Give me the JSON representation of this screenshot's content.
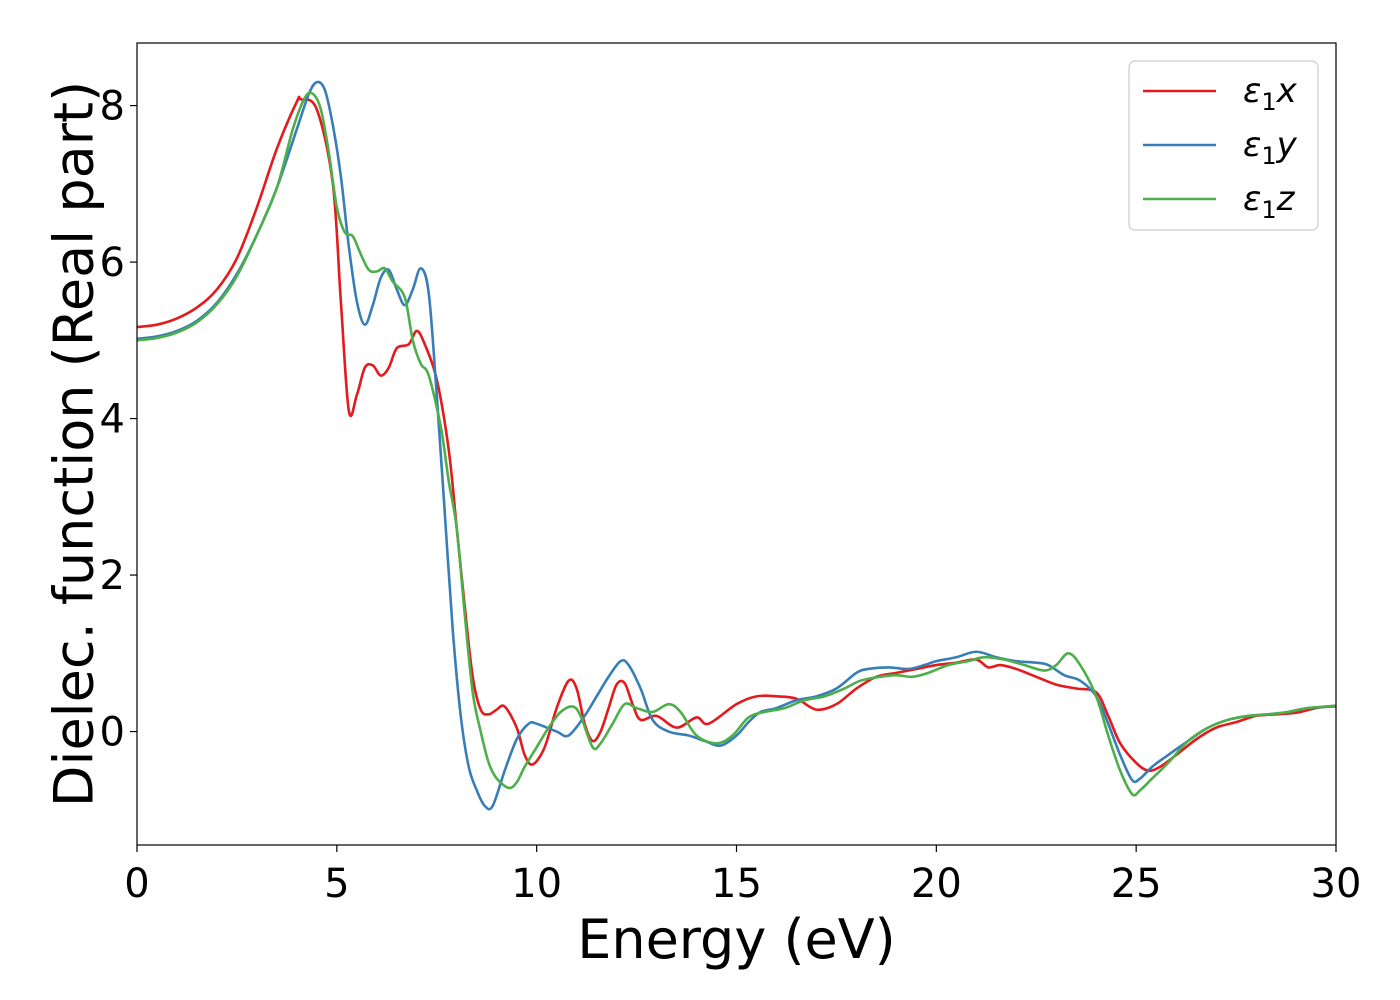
{
  "chart_data": {
    "type": "line",
    "xlabel": "Energy (eV)",
    "ylabel": "Dielec. function (Real part)",
    "xlim": [
      0,
      30
    ],
    "ylim": [
      -1.45,
      8.8
    ],
    "xticks": [
      0,
      5,
      10,
      15,
      20,
      25,
      30
    ],
    "yticks": [
      0,
      2,
      4,
      6,
      8
    ],
    "grid": false,
    "legend_position": "top-right",
    "series": [
      {
        "name": "ε₁x",
        "legend_base": "ε",
        "legend_sub": "1",
        "legend_tail": "x",
        "color": "#e41a1c",
        "points": [
          [
            0,
            5.17
          ],
          [
            0.5,
            5.2
          ],
          [
            1,
            5.28
          ],
          [
            1.5,
            5.42
          ],
          [
            2,
            5.65
          ],
          [
            2.5,
            6.05
          ],
          [
            3,
            6.7
          ],
          [
            3.5,
            7.45
          ],
          [
            4,
            8.05
          ],
          [
            4.1,
            8.08
          ],
          [
            4.5,
            7.95
          ],
          [
            4.9,
            7.0
          ],
          [
            5.1,
            5.5
          ],
          [
            5.3,
            4.1
          ],
          [
            5.5,
            4.3
          ],
          [
            5.7,
            4.65
          ],
          [
            5.9,
            4.68
          ],
          [
            6.1,
            4.55
          ],
          [
            6.3,
            4.65
          ],
          [
            6.5,
            4.9
          ],
          [
            6.8,
            4.95
          ],
          [
            7.0,
            5.12
          ],
          [
            7.2,
            4.95
          ],
          [
            7.5,
            4.5
          ],
          [
            7.8,
            3.6
          ],
          [
            8.0,
            2.6
          ],
          [
            8.2,
            1.6
          ],
          [
            8.4,
            0.7
          ],
          [
            8.6,
            0.28
          ],
          [
            8.8,
            0.22
          ],
          [
            9.0,
            0.28
          ],
          [
            9.2,
            0.32
          ],
          [
            9.5,
            0.05
          ],
          [
            9.7,
            -0.3
          ],
          [
            9.9,
            -0.42
          ],
          [
            10.2,
            -0.2
          ],
          [
            10.5,
            0.3
          ],
          [
            10.8,
            0.65
          ],
          [
            11.0,
            0.55
          ],
          [
            11.2,
            0.1
          ],
          [
            11.4,
            -0.12
          ],
          [
            11.6,
            0.0
          ],
          [
            11.8,
            0.3
          ],
          [
            12.0,
            0.6
          ],
          [
            12.2,
            0.62
          ],
          [
            12.4,
            0.35
          ],
          [
            12.6,
            0.15
          ],
          [
            13.0,
            0.2
          ],
          [
            13.5,
            0.05
          ],
          [
            14.0,
            0.18
          ],
          [
            14.3,
            0.1
          ],
          [
            15.0,
            0.35
          ],
          [
            15.5,
            0.45
          ],
          [
            16.0,
            0.45
          ],
          [
            16.5,
            0.42
          ],
          [
            17.0,
            0.28
          ],
          [
            17.5,
            0.35
          ],
          [
            18.0,
            0.55
          ],
          [
            18.5,
            0.7
          ],
          [
            19.0,
            0.75
          ],
          [
            19.5,
            0.8
          ],
          [
            20.0,
            0.85
          ],
          [
            20.5,
            0.88
          ],
          [
            21.0,
            0.92
          ],
          [
            21.3,
            0.82
          ],
          [
            21.6,
            0.85
          ],
          [
            22.0,
            0.8
          ],
          [
            22.5,
            0.7
          ],
          [
            23.0,
            0.6
          ],
          [
            23.5,
            0.55
          ],
          [
            24.0,
            0.5
          ],
          [
            24.3,
            0.2
          ],
          [
            24.6,
            -0.15
          ],
          [
            25.0,
            -0.4
          ],
          [
            25.3,
            -0.5
          ],
          [
            25.6,
            -0.45
          ],
          [
            26.0,
            -0.3
          ],
          [
            26.5,
            -0.1
          ],
          [
            27.0,
            0.05
          ],
          [
            27.5,
            0.12
          ],
          [
            28.0,
            0.2
          ],
          [
            28.5,
            0.22
          ],
          [
            29.0,
            0.24
          ],
          [
            29.5,
            0.3
          ],
          [
            30.0,
            0.33
          ]
        ]
      },
      {
        "name": "ε₁y",
        "legend_base": "ε",
        "legend_sub": "1",
        "legend_tail": "y",
        "color": "#377eb8",
        "points": [
          [
            0,
            5.02
          ],
          [
            0.5,
            5.05
          ],
          [
            1,
            5.12
          ],
          [
            1.5,
            5.25
          ],
          [
            2,
            5.48
          ],
          [
            2.5,
            5.85
          ],
          [
            3,
            6.35
          ],
          [
            3.5,
            6.95
          ],
          [
            4,
            7.7
          ],
          [
            4.3,
            8.15
          ],
          [
            4.5,
            8.3
          ],
          [
            4.7,
            8.2
          ],
          [
            4.9,
            7.75
          ],
          [
            5.1,
            7.1
          ],
          [
            5.3,
            6.2
          ],
          [
            5.5,
            5.5
          ],
          [
            5.7,
            5.2
          ],
          [
            5.9,
            5.45
          ],
          [
            6.1,
            5.8
          ],
          [
            6.3,
            5.9
          ],
          [
            6.5,
            5.65
          ],
          [
            6.7,
            5.45
          ],
          [
            6.9,
            5.65
          ],
          [
            7.1,
            5.92
          ],
          [
            7.3,
            5.6
          ],
          [
            7.5,
            4.3
          ],
          [
            7.7,
            2.8
          ],
          [
            7.9,
            1.3
          ],
          [
            8.1,
            0.2
          ],
          [
            8.3,
            -0.45
          ],
          [
            8.5,
            -0.75
          ],
          [
            8.7,
            -0.95
          ],
          [
            8.9,
            -0.95
          ],
          [
            9.2,
            -0.5
          ],
          [
            9.5,
            -0.1
          ],
          [
            9.8,
            0.1
          ],
          [
            10.0,
            0.1
          ],
          [
            10.5,
            0.0
          ],
          [
            10.8,
            -0.05
          ],
          [
            11.2,
            0.2
          ],
          [
            11.5,
            0.45
          ],
          [
            11.8,
            0.7
          ],
          [
            12.1,
            0.9
          ],
          [
            12.3,
            0.85
          ],
          [
            12.6,
            0.55
          ],
          [
            12.9,
            0.15
          ],
          [
            13.3,
            0.0
          ],
          [
            13.8,
            -0.05
          ],
          [
            14.2,
            -0.12
          ],
          [
            14.6,
            -0.18
          ],
          [
            15.0,
            -0.05
          ],
          [
            15.3,
            0.12
          ],
          [
            15.6,
            0.25
          ],
          [
            16.0,
            0.3
          ],
          [
            16.5,
            0.4
          ],
          [
            17.0,
            0.45
          ],
          [
            17.5,
            0.55
          ],
          [
            18.0,
            0.75
          ],
          [
            18.3,
            0.8
          ],
          [
            18.8,
            0.82
          ],
          [
            19.3,
            0.8
          ],
          [
            19.7,
            0.85
          ],
          [
            20.0,
            0.9
          ],
          [
            20.5,
            0.95
          ],
          [
            21.0,
            1.02
          ],
          [
            21.5,
            0.95
          ],
          [
            22.0,
            0.9
          ],
          [
            22.5,
            0.88
          ],
          [
            22.8,
            0.85
          ],
          [
            23.2,
            0.72
          ],
          [
            23.6,
            0.65
          ],
          [
            24.0,
            0.45
          ],
          [
            24.3,
            0.1
          ],
          [
            24.6,
            -0.3
          ],
          [
            24.9,
            -0.62
          ],
          [
            25.1,
            -0.6
          ],
          [
            25.4,
            -0.45
          ],
          [
            25.8,
            -0.3
          ],
          [
            26.3,
            -0.12
          ],
          [
            26.8,
            0.05
          ],
          [
            27.3,
            0.15
          ],
          [
            27.8,
            0.2
          ],
          [
            28.3,
            0.22
          ],
          [
            28.8,
            0.25
          ],
          [
            29.3,
            0.3
          ],
          [
            30.0,
            0.32
          ]
        ]
      },
      {
        "name": "ε₁z",
        "legend_base": "ε",
        "legend_sub": "1",
        "legend_tail": "z",
        "color": "#4daf4a",
        "points": [
          [
            0,
            5.0
          ],
          [
            0.5,
            5.03
          ],
          [
            1,
            5.1
          ],
          [
            1.5,
            5.23
          ],
          [
            2,
            5.46
          ],
          [
            2.5,
            5.82
          ],
          [
            3,
            6.35
          ],
          [
            3.5,
            6.95
          ],
          [
            3.9,
            7.7
          ],
          [
            4.2,
            8.1
          ],
          [
            4.4,
            8.15
          ],
          [
            4.6,
            7.95
          ],
          [
            4.8,
            7.4
          ],
          [
            5.0,
            6.7
          ],
          [
            5.2,
            6.38
          ],
          [
            5.4,
            6.33
          ],
          [
            5.6,
            6.1
          ],
          [
            5.8,
            5.9
          ],
          [
            6.0,
            5.88
          ],
          [
            6.2,
            5.92
          ],
          [
            6.4,
            5.75
          ],
          [
            6.7,
            5.55
          ],
          [
            6.9,
            5.0
          ],
          [
            7.1,
            4.7
          ],
          [
            7.3,
            4.55
          ],
          [
            7.6,
            3.9
          ],
          [
            7.8,
            3.2
          ],
          [
            8.0,
            2.6
          ],
          [
            8.2,
            1.5
          ],
          [
            8.4,
            0.5
          ],
          [
            8.6,
            0.0
          ],
          [
            8.8,
            -0.4
          ],
          [
            9.0,
            -0.6
          ],
          [
            9.3,
            -0.72
          ],
          [
            9.5,
            -0.65
          ],
          [
            9.7,
            -0.45
          ],
          [
            10.0,
            -0.2
          ],
          [
            10.3,
            0.05
          ],
          [
            10.6,
            0.25
          ],
          [
            10.9,
            0.32
          ],
          [
            11.1,
            0.2
          ],
          [
            11.4,
            -0.2
          ],
          [
            11.6,
            -0.15
          ],
          [
            11.9,
            0.1
          ],
          [
            12.2,
            0.35
          ],
          [
            12.5,
            0.3
          ],
          [
            12.9,
            0.25
          ],
          [
            13.3,
            0.35
          ],
          [
            13.6,
            0.25
          ],
          [
            14.0,
            -0.05
          ],
          [
            14.5,
            -0.15
          ],
          [
            14.9,
            -0.05
          ],
          [
            15.3,
            0.18
          ],
          [
            15.7,
            0.25
          ],
          [
            16.2,
            0.3
          ],
          [
            16.7,
            0.4
          ],
          [
            17.2,
            0.45
          ],
          [
            17.7,
            0.55
          ],
          [
            18.1,
            0.65
          ],
          [
            18.6,
            0.7
          ],
          [
            19.0,
            0.72
          ],
          [
            19.4,
            0.7
          ],
          [
            19.8,
            0.75
          ],
          [
            20.3,
            0.85
          ],
          [
            20.8,
            0.9
          ],
          [
            21.2,
            0.95
          ],
          [
            21.7,
            0.92
          ],
          [
            22.2,
            0.85
          ],
          [
            22.7,
            0.78
          ],
          [
            23.0,
            0.85
          ],
          [
            23.3,
            1.0
          ],
          [
            23.6,
            0.85
          ],
          [
            24.0,
            0.45
          ],
          [
            24.3,
            -0.05
          ],
          [
            24.6,
            -0.5
          ],
          [
            24.9,
            -0.8
          ],
          [
            25.1,
            -0.75
          ],
          [
            25.4,
            -0.6
          ],
          [
            25.8,
            -0.4
          ],
          [
            26.3,
            -0.12
          ],
          [
            26.8,
            0.05
          ],
          [
            27.3,
            0.15
          ],
          [
            27.8,
            0.2
          ],
          [
            28.3,
            0.22
          ],
          [
            28.8,
            0.25
          ],
          [
            29.3,
            0.3
          ],
          [
            30.0,
            0.33
          ]
        ]
      }
    ]
  }
}
